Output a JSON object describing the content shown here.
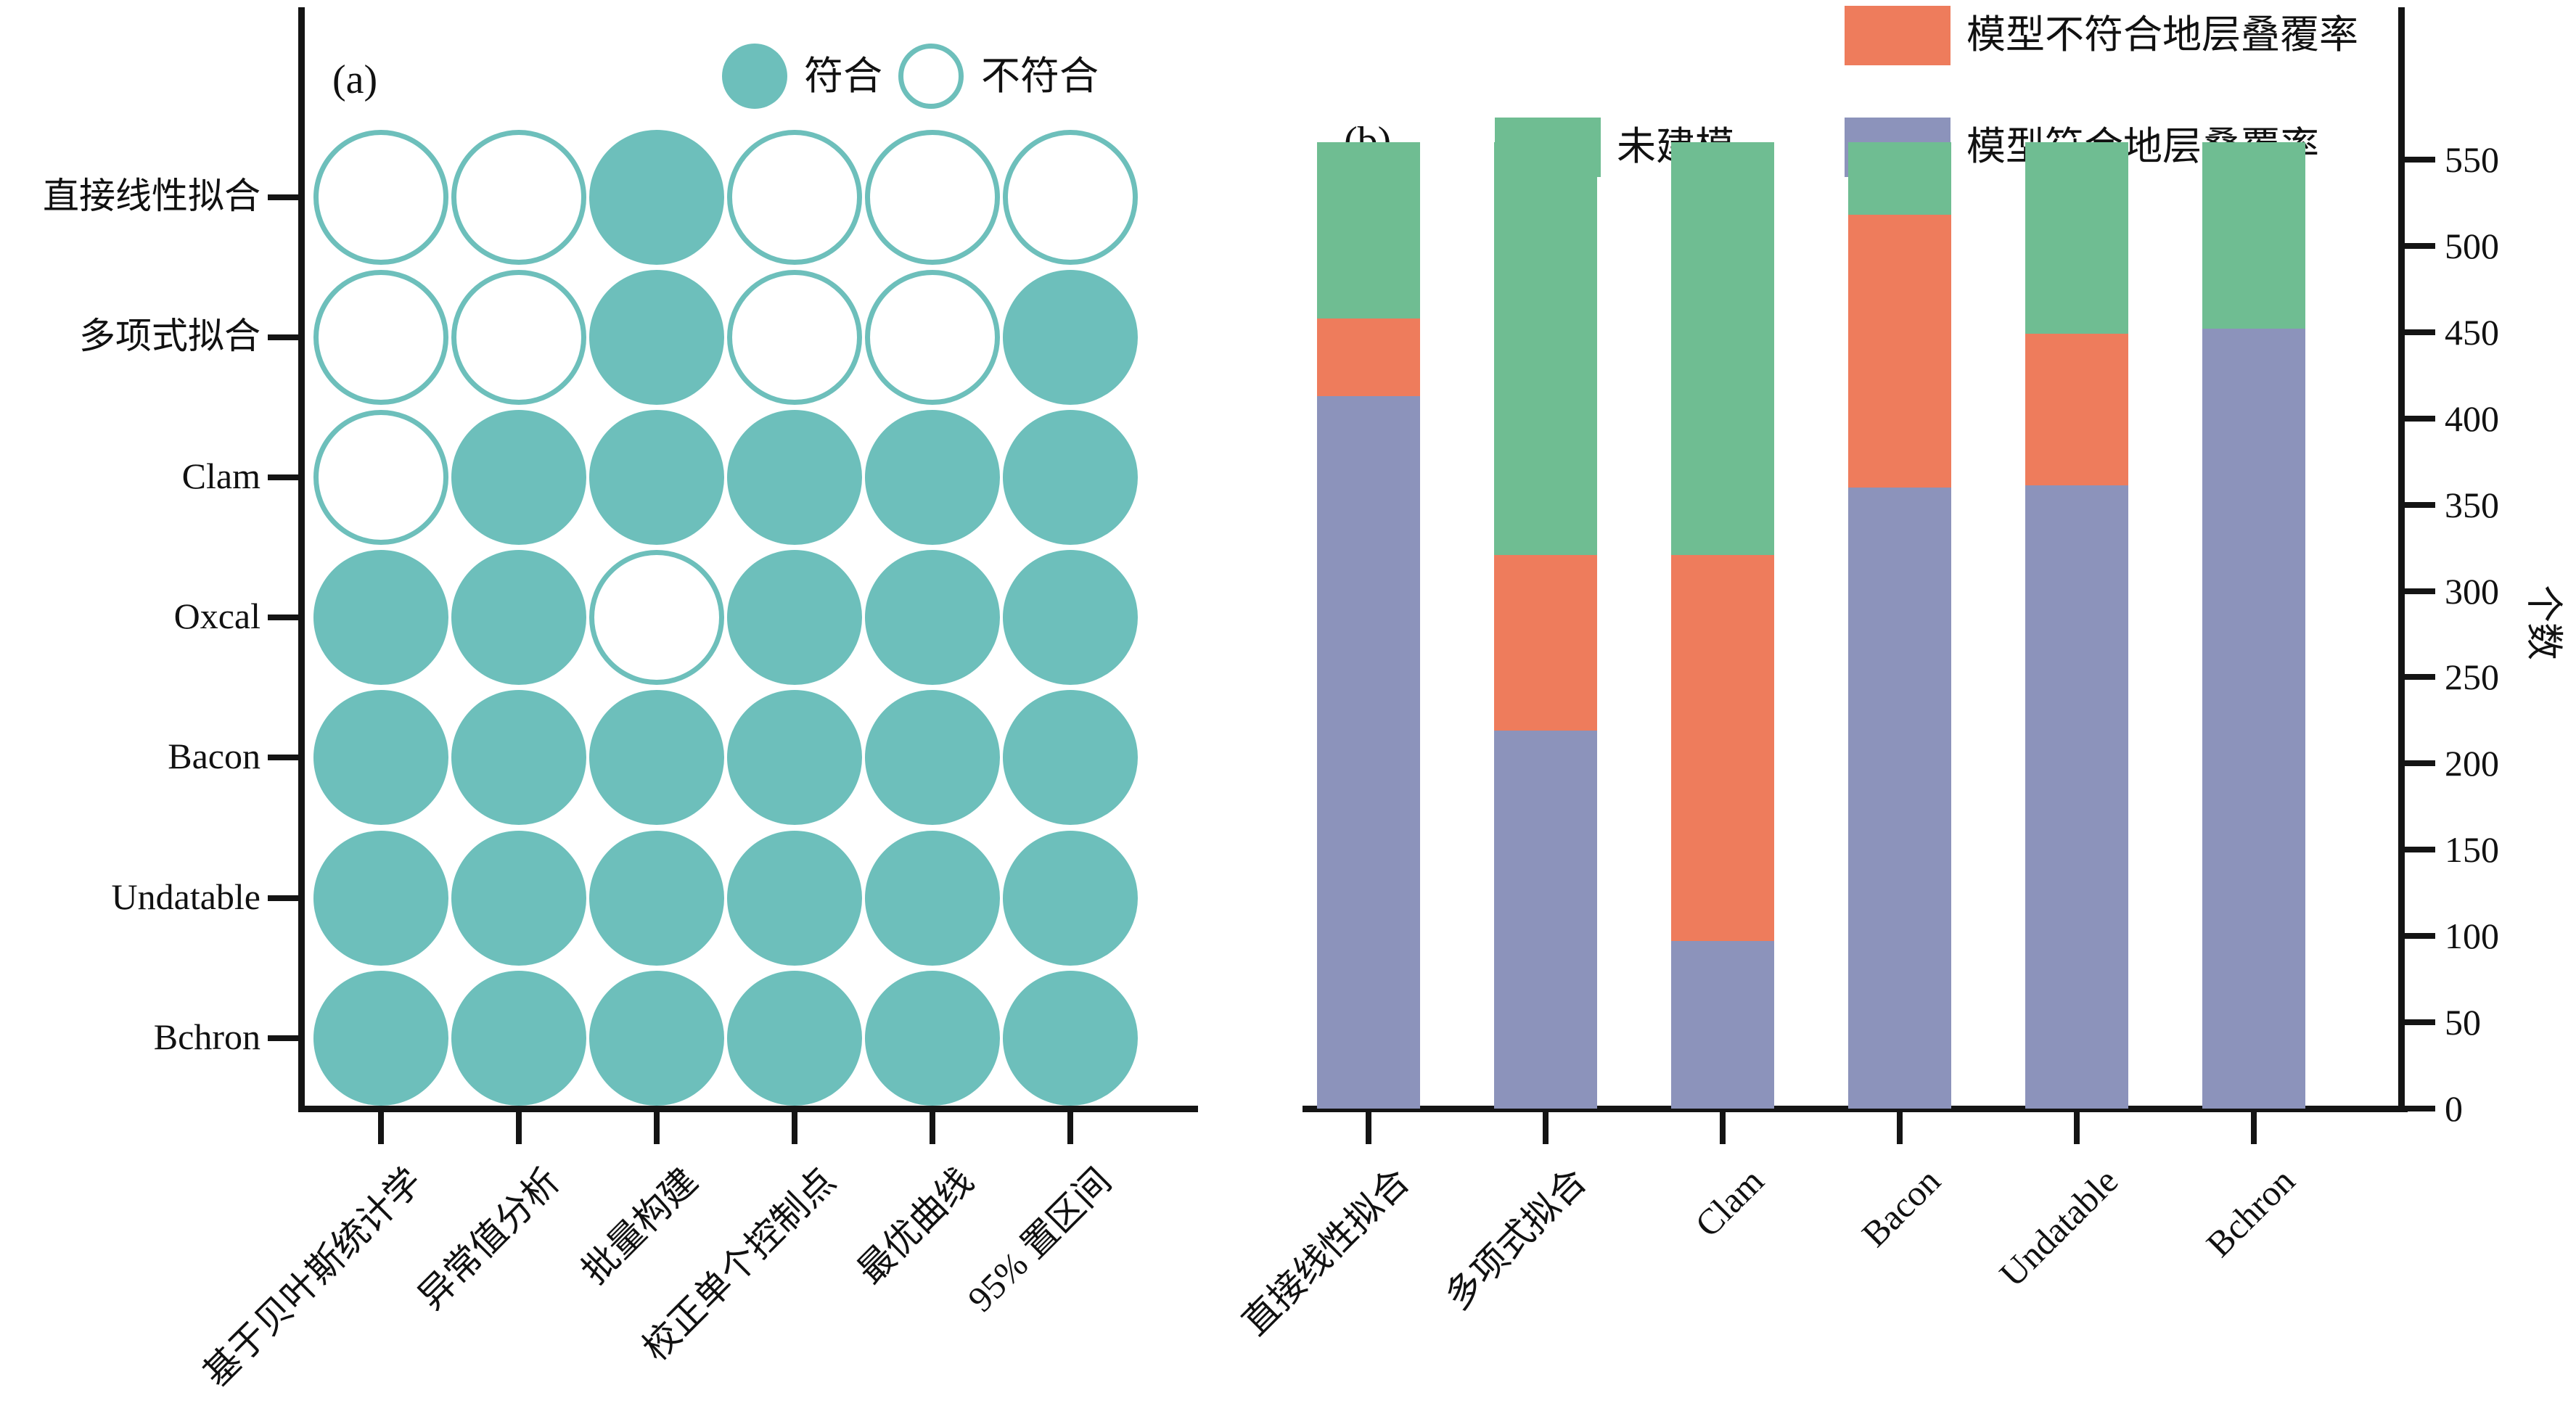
{
  "colors": {
    "teal": "#6DBFBB",
    "green": "#6FBD92",
    "orange": "#EE7C5C",
    "purple": "#8C93BB",
    "axis": "#141414"
  },
  "panel_a": {
    "label": "(a)",
    "legend_filled": "符合",
    "legend_open": "不符合"
  },
  "panel_b": {
    "label": "(b)",
    "legend_unmodeled": "未建模",
    "legend_mismatch": "模型不符合地层叠覆率",
    "legend_match": "模型符合地层叠覆率",
    "ylabel": "个数"
  },
  "chart_data": [
    {
      "type": "heatmap",
      "subtype": "binary-dot-matrix",
      "legend": {
        "filled": "符合",
        "open": "不符合"
      },
      "rows": [
        "直接线性拟合",
        "多项式拟合",
        "Clam",
        "Oxcal",
        "Bacon",
        "Undatable",
        "Bchron"
      ],
      "columns": [
        "基于贝叶斯统计学",
        "异常值分析",
        "批量构建",
        "校正单个控制点",
        "最优曲线",
        "95% 置区间"
      ],
      "values": [
        [
          0,
          0,
          1,
          0,
          0,
          0
        ],
        [
          0,
          0,
          1,
          0,
          0,
          1
        ],
        [
          0,
          1,
          1,
          1,
          1,
          1
        ],
        [
          1,
          1,
          0,
          1,
          1,
          1
        ],
        [
          1,
          1,
          1,
          1,
          1,
          1
        ],
        [
          1,
          1,
          1,
          1,
          1,
          1
        ],
        [
          1,
          1,
          1,
          1,
          1,
          1
        ]
      ]
    },
    {
      "type": "bar",
      "stacked": true,
      "categories": [
        "直接线性拟合",
        "多项式拟合",
        "Clam",
        "Bacon",
        "Undatable",
        "Bchron"
      ],
      "series": [
        {
          "name": "模型符合地层叠覆率",
          "color_key": "purple",
          "values": [
            413,
            219,
            97,
            360,
            361,
            452
          ]
        },
        {
          "name": "模型不符合地层叠覆率",
          "color_key": "orange",
          "values": [
            45,
            102,
            224,
            158,
            88,
            0
          ]
        },
        {
          "name": "未建模",
          "color_key": "green",
          "values": [
            102,
            239,
            239,
            42,
            111,
            108
          ]
        }
      ],
      "totals": [
        560,
        560,
        560,
        560,
        560,
        560
      ],
      "ylabel": "个数",
      "ylim": [
        0,
        560
      ],
      "yticks": [
        0,
        50,
        100,
        150,
        200,
        250,
        300,
        350,
        400,
        450,
        500,
        550
      ],
      "ytick_labels": [
        "0",
        "50",
        "100",
        "150",
        "200",
        "250",
        "300",
        "350",
        "400",
        "450",
        "500",
        "550"
      ],
      "grid": false,
      "legend_position": "top-right",
      "y_axis_side": "right"
    }
  ]
}
